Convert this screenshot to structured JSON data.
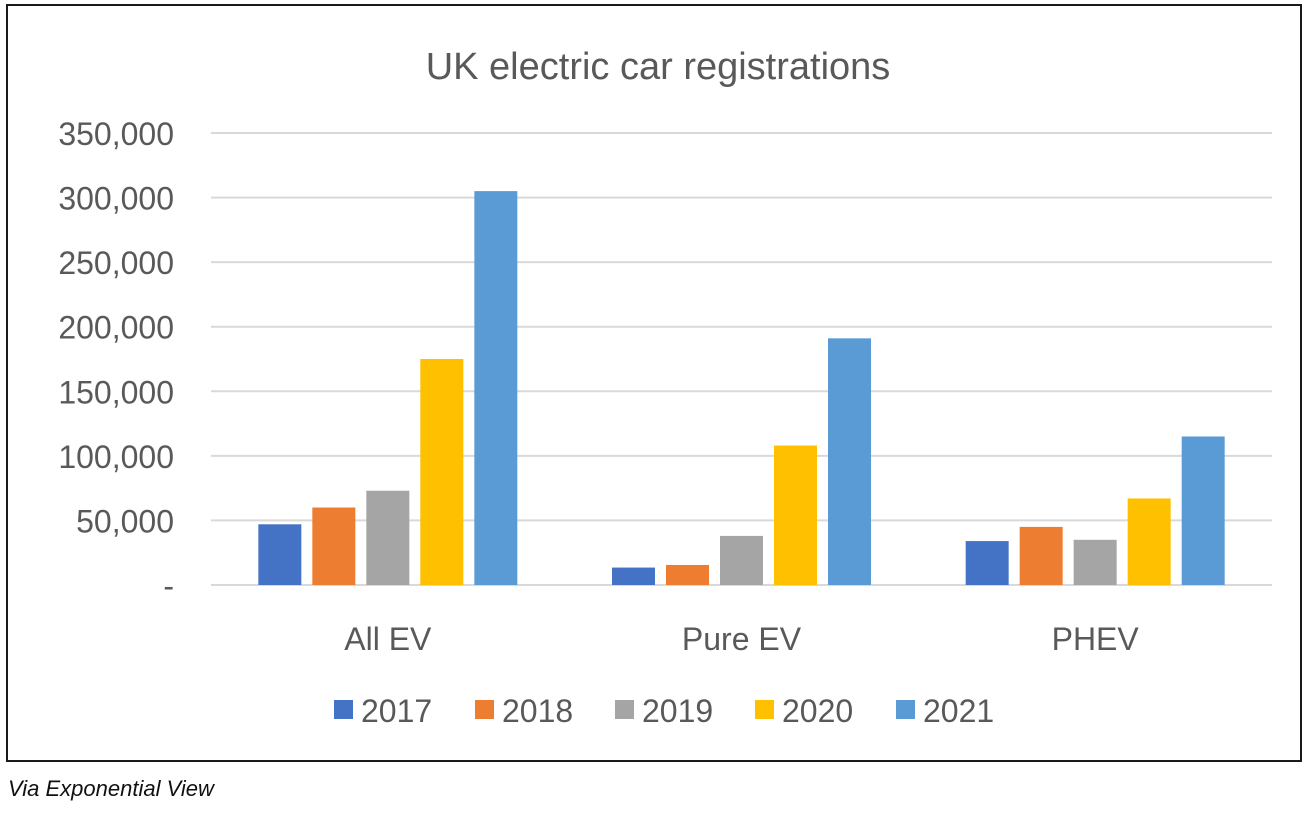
{
  "chart_data": {
    "type": "bar",
    "title": "UK electric car registrations",
    "categories": [
      "All EV",
      "Pure EV",
      "PHEV"
    ],
    "series": [
      {
        "name": "2017",
        "color": "#4472c4",
        "values": [
          47000,
          13500,
          34000
        ]
      },
      {
        "name": "2018",
        "color": "#ed7d31",
        "values": [
          60000,
          15500,
          45000
        ]
      },
      {
        "name": "2019",
        "color": "#a5a5a5",
        "values": [
          73000,
          38000,
          35000
        ]
      },
      {
        "name": "2020",
        "color": "#ffc000",
        "values": [
          175000,
          108000,
          67000
        ]
      },
      {
        "name": "2021",
        "color": "#5b9bd5",
        "values": [
          305000,
          191000,
          115000
        ]
      }
    ],
    "yticks": [
      0,
      50000,
      100000,
      150000,
      200000,
      250000,
      300000,
      350000
    ],
    "ytick_labels": [
      "-",
      "50,000",
      "100,000",
      "150,000",
      "200,000",
      "250,000",
      "300,000",
      "350,000"
    ],
    "ylim": [
      0,
      350000
    ],
    "xlabel": "",
    "ylabel": "",
    "grid": true,
    "legend": "bottom"
  },
  "caption": "Via Exponential View"
}
